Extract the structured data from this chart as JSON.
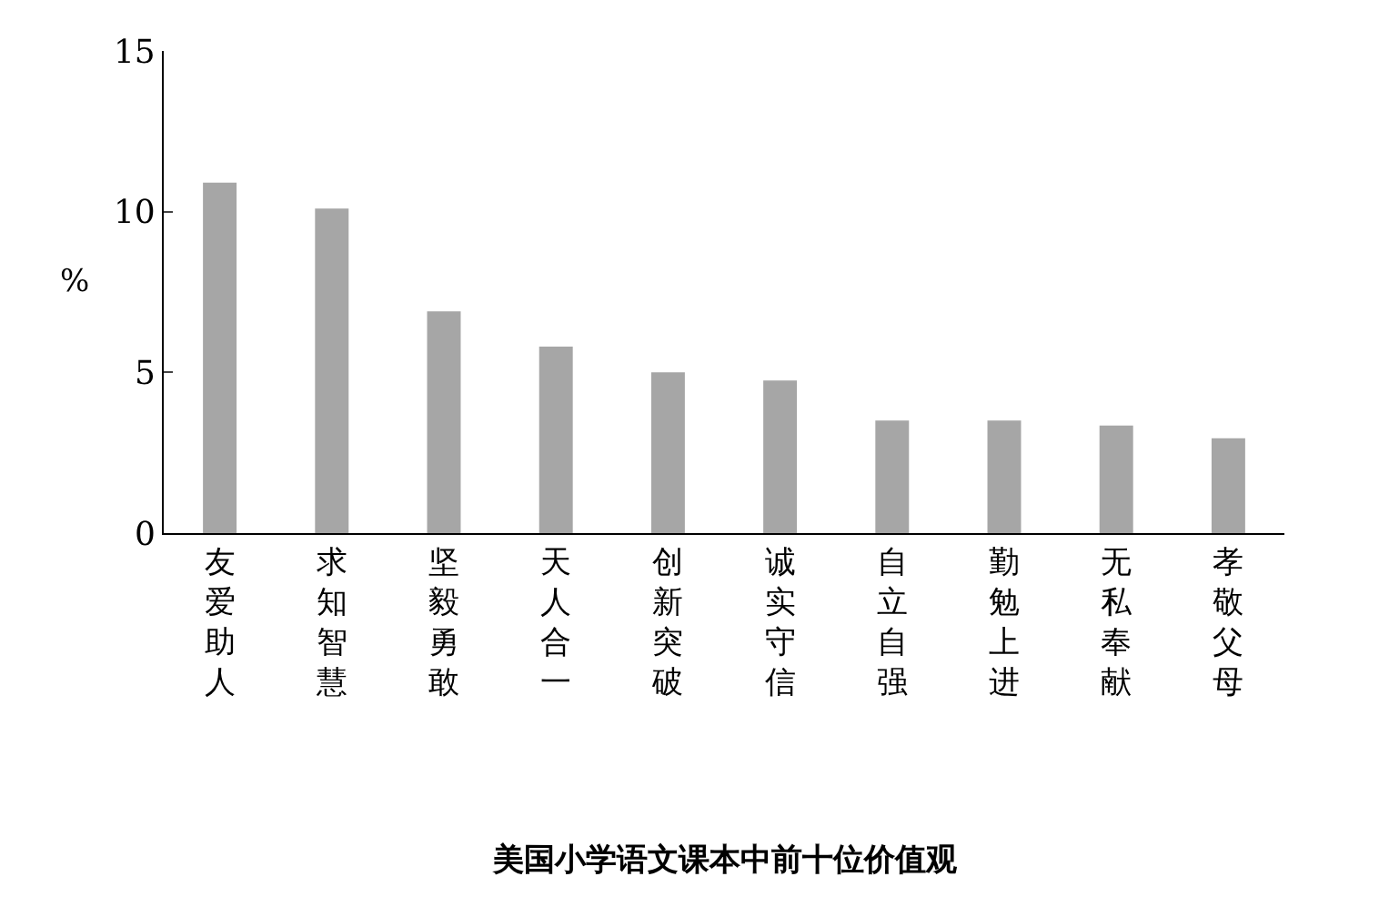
{
  "chart_data": {
    "type": "bar",
    "title": "美国小学语文课本中前十位价值观",
    "ylabel": "%",
    "categories": [
      "友爱助人",
      "求知智慧",
      "坚毅勇敢",
      "天人合一",
      "创新突破",
      "诚实守信",
      "自立自强",
      "勤勉上进",
      "无私奉献",
      "孝敬父母"
    ],
    "values": [
      10.9,
      10.1,
      6.9,
      5.8,
      5.0,
      4.75,
      3.5,
      3.5,
      3.35,
      2.95
    ],
    "color": "#a6a6a6",
    "ylim": [
      0,
      15
    ],
    "yticks": [
      0,
      5,
      10,
      15
    ]
  }
}
